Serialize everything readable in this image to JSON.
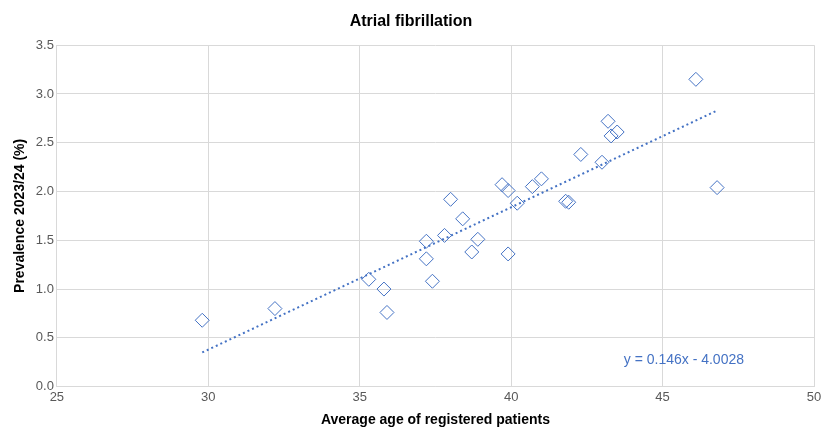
{
  "chart_data": {
    "type": "scatter",
    "title": "Atrial fibrillation",
    "x_label": "Average age of registered patients",
    "y_label": "Prevalence 2023/24 (%)",
    "x": [
      29.8,
      32.2,
      35.3,
      35.8,
      35.9,
      37.2,
      37.2,
      37.4,
      37.8,
      38.0,
      38.4,
      38.7,
      38.9,
      39.7,
      39.9,
      39.9,
      40.2,
      40.7,
      41.0,
      41.8,
      41.9,
      42.3,
      43.0,
      43.2,
      43.3,
      43.5,
      46.1,
      46.8
    ],
    "values": [
      0.68,
      0.8,
      1.1,
      1.0,
      0.76,
      1.49,
      1.31,
      1.08,
      1.55,
      1.92,
      1.72,
      1.38,
      1.51,
      2.07,
      2.01,
      1.36,
      1.88,
      2.05,
      2.13,
      1.9,
      1.89,
      2.38,
      2.3,
      2.72,
      2.57,
      2.61,
      3.15,
      2.04
    ],
    "color": "#4472c4",
    "marker": "diamond",
    "trendline": {
      "x": [
        29.8,
        46.8
      ],
      "values": [
        0.35,
        2.83
      ],
      "color": "#4472c4",
      "line_style": "dotted"
    },
    "annotations": [
      "y = 0.146x - 4.0028"
    ],
    "xlim": [
      25,
      50
    ],
    "xticks": [
      25,
      30,
      35,
      40,
      45,
      50
    ],
    "ylim": [
      0,
      3.5
    ],
    "yticks": [
      {
        "value": 0,
        "label": "0.0"
      },
      0.5,
      {
        "value": 1,
        "label": "1.0"
      },
      1.5,
      {
        "value": 2,
        "label": "2.0"
      },
      2.5,
      {
        "value": 3,
        "label": "3.0"
      },
      3.5
    ],
    "grid": true
  }
}
